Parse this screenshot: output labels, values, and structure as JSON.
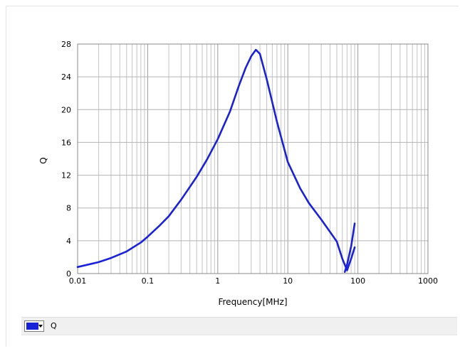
{
  "chart_data": {
    "type": "line",
    "title": "",
    "xlabel": "Frequency[MHz]",
    "ylabel": "Q",
    "xscale": "log",
    "xlim": [
      0.01,
      1000
    ],
    "ylim": [
      0,
      28
    ],
    "x_ticks": [
      0.01,
      0.1,
      1,
      10,
      100,
      1000
    ],
    "x_tick_labels": [
      "0.01",
      "0.1",
      "1",
      "10",
      "100",
      "1000"
    ],
    "y_ticks": [
      0,
      4,
      8,
      12,
      16,
      20,
      24,
      28
    ],
    "y_tick_labels": [
      "0",
      "4",
      "8",
      "12",
      "16",
      "20",
      "24",
      "28"
    ],
    "grid": true,
    "legend_position": "bottom",
    "series": [
      {
        "name": "Q",
        "color": "#1a22d8",
        "x": [
          0.01,
          0.02,
          0.03,
          0.05,
          0.08,
          0.1,
          0.15,
          0.2,
          0.3,
          0.5,
          0.7,
          1,
          1.5,
          2,
          2.5,
          3,
          3.5,
          4,
          5,
          7,
          10,
          15,
          20,
          30,
          40,
          50,
          60,
          70,
          80,
          90
        ],
        "values": [
          0.8,
          1.4,
          1.9,
          2.7,
          3.8,
          4.5,
          5.9,
          7.0,
          9.0,
          11.8,
          13.9,
          16.4,
          19.8,
          22.9,
          25.1,
          26.5,
          27.3,
          26.8,
          23.7,
          18.5,
          13.6,
          10.4,
          8.6,
          6.6,
          5.1,
          3.9,
          1.8,
          0.4,
          1.8,
          3.2
        ]
      },
      {
        "name": "",
        "color": "#1a22d8",
        "x": [
          65,
          70,
          80,
          90
        ],
        "values": [
          0.2,
          1.1,
          3.3,
          6.1
        ]
      }
    ]
  },
  "legend": {
    "label": "Q",
    "color": "#1a22d8"
  }
}
